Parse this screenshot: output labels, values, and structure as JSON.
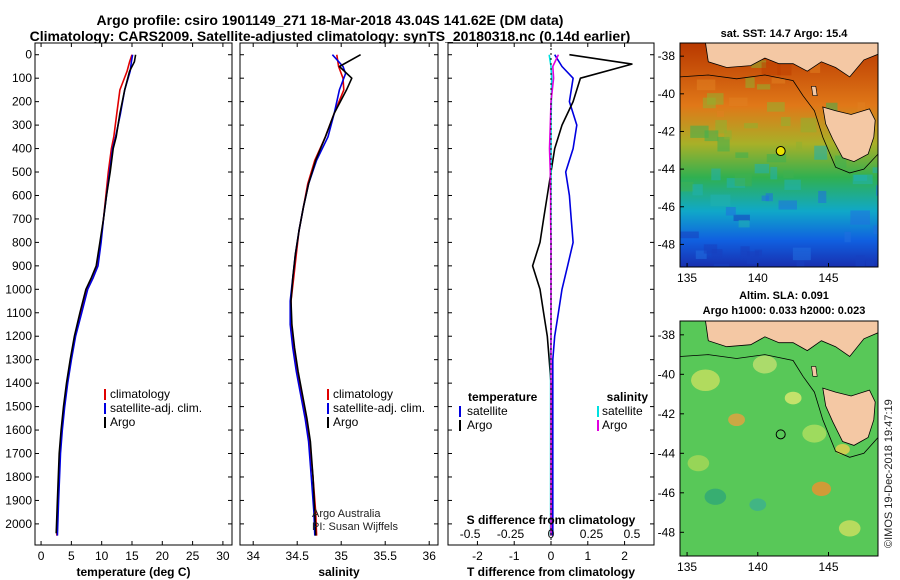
{
  "header": {
    "line1": "Argo profile: csiro 1901149_271 18-Mar-2018 43.04S 141.62E (DM data)",
    "line2": "Climatology: CARS2009. Satellite-adjusted climatology: synTS_20180318.nc (0.14d earlier)"
  },
  "colors": {
    "argo": "#000000",
    "climatology": "#e00000",
    "satellite": "#0000e0",
    "satellite_s": "#00e0e0",
    "salinity_argo": "#e000e0"
  },
  "depth_ticks": [
    0,
    100,
    200,
    300,
    400,
    500,
    600,
    700,
    800,
    900,
    1000,
    1100,
    1200,
    1300,
    1400,
    1500,
    1600,
    1700,
    1800,
    1900,
    2000
  ],
  "chart_data": [
    {
      "type": "line",
      "id": "temperature",
      "xlabel": "temperature (deg C)",
      "xticks": [
        0,
        5,
        10,
        15,
        20,
        25,
        30
      ],
      "xlim": [
        -1,
        31.5
      ],
      "ylim": [
        -50,
        2090
      ],
      "legend": [
        "climatology",
        "satellite-adj. clim.",
        "Argo"
      ],
      "series": [
        {
          "name": "climatology",
          "color": "#e00000",
          "x": [
            15.0,
            14.6,
            14.2,
            13.0,
            12.5,
            12.0,
            11.6,
            11.1,
            10.7,
            10.3,
            9.8,
            9.3,
            8.6,
            7.6,
            6.6,
            5.6,
            4.9,
            4.3,
            3.8,
            3.4,
            3.1,
            2.8,
            2.6
          ],
          "y": [
            0,
            30,
            70,
            150,
            250,
            350,
            400,
            500,
            600,
            700,
            800,
            900,
            950,
            1000,
            1100,
            1200,
            1300,
            1400,
            1500,
            1600,
            1700,
            1900,
            2050
          ]
        },
        {
          "name": "satellite-adj. clim.",
          "color": "#0000e0",
          "x": [
            15.1,
            14.9,
            14.7,
            13.8,
            13.1,
            12.3,
            11.8,
            11.3,
            10.8,
            10.3,
            9.9,
            9.4,
            8.6,
            7.7,
            6.7,
            5.7,
            5.0,
            4.4,
            3.9,
            3.5,
            3.2,
            2.9,
            2.7
          ],
          "y": [
            0,
            30,
            70,
            150,
            250,
            350,
            400,
            500,
            600,
            700,
            800,
            900,
            950,
            1000,
            1100,
            1200,
            1300,
            1400,
            1500,
            1600,
            1700,
            1900,
            2050
          ]
        },
        {
          "name": "Argo",
          "color": "#000000",
          "x": [
            15.6,
            15.4,
            14.6,
            13.8,
            13.0,
            12.4,
            11.9,
            11.4,
            10.8,
            10.3,
            9.7,
            9.1,
            8.3,
            7.4,
            6.4,
            5.5,
            4.8,
            4.2,
            3.7,
            3.3,
            3.0,
            2.7,
            2.5
          ],
          "y": [
            0,
            30,
            70,
            150,
            250,
            350,
            400,
            500,
            600,
            700,
            800,
            900,
            950,
            1000,
            1100,
            1200,
            1300,
            1400,
            1500,
            1600,
            1700,
            1900,
            2040
          ]
        }
      ]
    },
    {
      "type": "line",
      "id": "salinity",
      "xlabel": "salinity",
      "xticks": [
        34,
        34.5,
        35,
        35.5,
        36
      ],
      "xlim": [
        33.85,
        36.1
      ],
      "ylim": [
        -50,
        2090
      ],
      "legend": [
        "climatology",
        "satellite-adj. clim.",
        "Argo"
      ],
      "annotation": [
        "Argo Australia",
        "PI: Susan Wijffels"
      ],
      "series": [
        {
          "name": "climatology",
          "color": "#e00000",
          "x": [
            34.95,
            34.97,
            35.02,
            35.03,
            34.92,
            34.82,
            34.7,
            34.62,
            34.57,
            34.52,
            34.49,
            34.46,
            34.43,
            34.43,
            34.46,
            34.5,
            34.55,
            34.6,
            34.64,
            34.68,
            34.71,
            34.72
          ],
          "y": [
            0,
            50,
            100,
            150,
            250,
            350,
            450,
            550,
            650,
            750,
            850,
            950,
            1050,
            1150,
            1250,
            1350,
            1450,
            1550,
            1650,
            1800,
            1950,
            2050
          ]
        },
        {
          "name": "satellite-adj. clim.",
          "color": "#0000e0",
          "x": [
            34.9,
            35.02,
            35.05,
            34.98,
            34.92,
            34.85,
            34.72,
            34.63,
            34.57,
            34.52,
            34.48,
            34.45,
            34.42,
            34.42,
            34.45,
            34.49,
            34.54,
            34.59,
            34.63,
            34.66,
            34.69,
            34.7
          ],
          "y": [
            0,
            50,
            80,
            150,
            250,
            350,
            450,
            550,
            650,
            750,
            850,
            950,
            1050,
            1150,
            1250,
            1350,
            1450,
            1550,
            1650,
            1800,
            1950,
            2050
          ]
        },
        {
          "name": "Argo",
          "color": "#000000",
          "x": [
            35.22,
            34.98,
            35.12,
            35.06,
            34.92,
            34.82,
            34.71,
            34.63,
            34.57,
            34.52,
            34.48,
            34.45,
            34.43,
            34.44,
            34.47,
            34.51,
            34.56,
            34.61,
            34.65,
            34.68,
            34.7,
            34.71
          ],
          "y": [
            0,
            50,
            100,
            150,
            250,
            350,
            450,
            550,
            650,
            750,
            850,
            950,
            1050,
            1150,
            1250,
            1350,
            1450,
            1550,
            1650,
            1800,
            1950,
            2050
          ]
        }
      ]
    },
    {
      "type": "line",
      "id": "difference",
      "xlabel": "T difference from climatology",
      "xlabel2": "S difference from climatology",
      "xticks": [
        -2,
        -1,
        0,
        1,
        2
      ],
      "xticks2": [
        "-0.5",
        "-0.25",
        "0",
        "0.25",
        "0.5"
      ],
      "xlim": [
        -2.8,
        2.8
      ],
      "ylim": [
        -50,
        2090
      ],
      "legend_left_title": "temperature",
      "legend_right_title": "salinity",
      "legend_left": [
        "satellite",
        "Argo"
      ],
      "legend_right": [
        "satellite",
        "Argo"
      ],
      "series": [
        {
          "name": "temperature satellite",
          "color": "#0000e0",
          "x": [
            0.1,
            0.3,
            0.6,
            0.5,
            0.7,
            0.6,
            0.4,
            0.5,
            0.55,
            0.6,
            0.45,
            0.3,
            0.2,
            0.1,
            0.05,
            0.05,
            0.05,
            0.05,
            0.05,
            0.05,
            0.05
          ],
          "y": [
            0,
            50,
            100,
            200,
            300,
            400,
            500,
            600,
            700,
            800,
            900,
            1000,
            1100,
            1200,
            1300,
            1400,
            1500,
            1600,
            1800,
            1900,
            2050
          ]
        },
        {
          "name": "temperature Argo",
          "color": "#000000",
          "x": [
            0.5,
            2.2,
            0.8,
            0.6,
            0.3,
            0.1,
            0.0,
            -0.1,
            -0.2,
            -0.3,
            -0.5,
            -0.3,
            -0.2,
            -0.1,
            -0.05,
            0.0,
            0.0,
            0.0,
            0.0,
            0.0,
            0.0
          ],
          "y": [
            0,
            40,
            100,
            200,
            300,
            400,
            500,
            600,
            700,
            800,
            900,
            1000,
            1100,
            1200,
            1300,
            1400,
            1500,
            1600,
            1800,
            1900,
            2050
          ]
        },
        {
          "name": "salinity satellite",
          "color": "#00e0e0",
          "x": [
            -0.05,
            0.0,
            0.02,
            0.01,
            0.0,
            0.0,
            0.0,
            0.0,
            0.0,
            0.0,
            0.0,
            0.0,
            0.0,
            0.0,
            -0.01,
            -0.01,
            -0.01,
            -0.01,
            -0.01,
            -0.01,
            -0.01
          ],
          "y": [
            0,
            50,
            100,
            200,
            300,
            400,
            500,
            600,
            700,
            800,
            900,
            1000,
            1100,
            1200,
            1300,
            1400,
            1500,
            1600,
            1800,
            1900,
            2050
          ]
        },
        {
          "name": "salinity Argo",
          "color": "#e000e0",
          "x": [
            0.2,
            0.05,
            0.07,
            0.0,
            -0.02,
            -0.04,
            -0.02,
            -0.01,
            -0.01,
            0.0,
            0.0,
            0.0,
            0.0,
            0.0,
            0.0,
            0.0,
            0.0,
            0.0,
            0.0,
            0.0,
            0.0
          ],
          "y": [
            0,
            50,
            100,
            200,
            300,
            400,
            500,
            600,
            700,
            800,
            900,
            1000,
            1100,
            1200,
            1300,
            1400,
            1500,
            1600,
            1800,
            1900,
            2050
          ]
        }
      ]
    },
    {
      "type": "heatmap",
      "id": "sst-map",
      "title": "sat. SST: 14.7 Argo: 15.4",
      "xticks": [
        135,
        140,
        145
      ],
      "yticks": [
        -38,
        -40,
        -42,
        -44,
        -46,
        -48
      ],
      "xlim": [
        134.5,
        148.5
      ],
      "ylim": [
        -49.2,
        -37.3
      ],
      "marker": {
        "lon": 141.62,
        "lat": -43.04
      }
    },
    {
      "type": "heatmap",
      "id": "sla-map",
      "title": "Altim. SLA: 0.091",
      "subtitle": "Argo h1000: 0.033 h2000: 0.023",
      "xticks": [
        135,
        140,
        145
      ],
      "yticks": [
        -38,
        -40,
        -42,
        -44,
        -46,
        -48
      ],
      "xlim": [
        134.5,
        148.5
      ],
      "ylim": [
        -49.2,
        -37.3
      ],
      "marker": {
        "lon": 141.62,
        "lat": -43.04
      }
    }
  ],
  "credit": "©IMOS 19-Dec-2018 19:47:19"
}
